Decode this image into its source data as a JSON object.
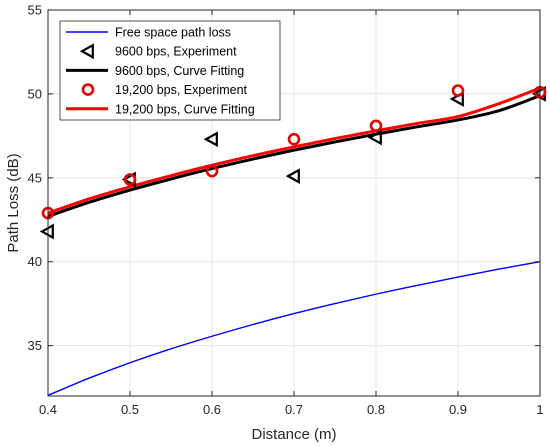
{
  "chart_data": {
    "type": "line",
    "title": "",
    "xlabel": "Distance (m)",
    "ylabel": "Path Loss (dB)",
    "xlim": [
      0.4,
      1.0
    ],
    "ylim": [
      32,
      55
    ],
    "xticks": [
      0.4,
      0.5,
      0.6,
      0.7,
      0.8,
      0.9,
      1.0
    ],
    "xtick_labels": [
      "0.4",
      "0.5",
      "0.6",
      "0.7",
      "0.8",
      "0.9",
      "1"
    ],
    "yticks": [
      35,
      40,
      45,
      50,
      55
    ],
    "ytick_labels": [
      "35",
      "40",
      "45",
      "50",
      "55"
    ],
    "grid": true,
    "legend_position": "top-left",
    "series": [
      {
        "name": "Free space path loss",
        "style": "line",
        "color": "#0000ff",
        "x": [
          0.4,
          0.45,
          0.5,
          0.55,
          0.6,
          0.65,
          0.7,
          0.75,
          0.8,
          0.85,
          0.9,
          0.95,
          1.0
        ],
        "y": [
          32.04,
          33.06,
          33.98,
          34.81,
          35.56,
          36.26,
          36.91,
          37.51,
          38.07,
          38.59,
          39.09,
          39.56,
          40.0
        ]
      },
      {
        "name": "9600 bps, Experiment",
        "style": "marker-triangle-left",
        "color": "#000000",
        "x": [
          0.4,
          0.5,
          0.6,
          0.7,
          0.8,
          0.9,
          1.0
        ],
        "y": [
          41.8,
          44.9,
          47.3,
          45.1,
          47.4,
          49.7,
          50.0
        ]
      },
      {
        "name": "9600 bps, Curve Fitting",
        "style": "line",
        "color": "#000000",
        "x": [
          0.4,
          0.45,
          0.5,
          0.55,
          0.6,
          0.65,
          0.7,
          0.75,
          0.8,
          0.85,
          0.9,
          0.95,
          1.0
        ],
        "y": [
          42.7,
          43.54,
          44.27,
          44.93,
          45.55,
          46.12,
          46.65,
          47.14,
          47.6,
          48.04,
          48.45,
          49.0,
          49.9
        ]
      },
      {
        "name": "19,200 bps, Experiment",
        "style": "marker-circle",
        "color": "#e00000",
        "x": [
          0.4,
          0.5,
          0.6,
          0.7,
          0.8,
          0.9,
          1.0
        ],
        "y": [
          42.9,
          44.9,
          45.4,
          47.3,
          48.1,
          50.2,
          50.1
        ]
      },
      {
        "name": "19,200 bps, Curve Fitting",
        "style": "line",
        "color": "#ff0000",
        "x": [
          0.4,
          0.45,
          0.5,
          0.55,
          0.6,
          0.65,
          0.7,
          0.75,
          0.8,
          0.85,
          0.9,
          0.95,
          1.0
        ],
        "y": [
          42.9,
          43.74,
          44.47,
          45.13,
          45.75,
          46.32,
          46.85,
          47.34,
          47.8,
          48.24,
          48.65,
          49.42,
          50.35
        ]
      }
    ]
  }
}
